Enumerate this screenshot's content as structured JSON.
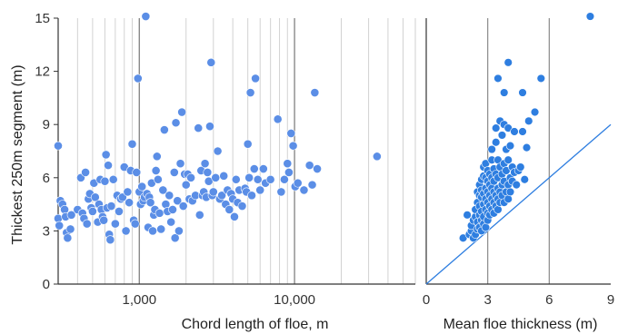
{
  "chart_data": [
    {
      "type": "scatter",
      "xscale": "log",
      "xlim": [
        300,
        60000
      ],
      "ylim": [
        0,
        15
      ],
      "xlabel": "Chord length of floe, m",
      "ylabel": "Thickest 250m segment (m)",
      "xticks": [
        1000,
        10000
      ],
      "xtick_labels": [
        "1,000",
        "10,000"
      ],
      "yticks": [
        0,
        3,
        6,
        9,
        12,
        15
      ],
      "ytick_labels": [
        "0",
        "3",
        "6",
        "9",
        "12",
        "15"
      ],
      "grid": "vertical log gridlines",
      "marker_color": "#5b8ee6",
      "points": [
        [
          300,
          7.8
        ],
        [
          300,
          3.7
        ],
        [
          305,
          3.3
        ],
        [
          310,
          4.7
        ],
        [
          320,
          4.5
        ],
        [
          330,
          4.2
        ],
        [
          335,
          3.8
        ],
        [
          340,
          2.9
        ],
        [
          345,
          2.6
        ],
        [
          360,
          3.1
        ],
        [
          365,
          3.9
        ],
        [
          400,
          4.2
        ],
        [
          420,
          6.0
        ],
        [
          430,
          4.0
        ],
        [
          440,
          3.7
        ],
        [
          450,
          6.3
        ],
        [
          460,
          3.4
        ],
        [
          470,
          4.8
        ],
        [
          480,
          5.1
        ],
        [
          490,
          4.3
        ],
        [
          500,
          4.1
        ],
        [
          510,
          5.7
        ],
        [
          520,
          4.9
        ],
        [
          540,
          3.5
        ],
        [
          550,
          4.5
        ],
        [
          560,
          5.9
        ],
        [
          570,
          4.2
        ],
        [
          580,
          3.8
        ],
        [
          590,
          3.6
        ],
        [
          600,
          5.8
        ],
        [
          610,
          7.3
        ],
        [
          620,
          4.3
        ],
        [
          630,
          6.7
        ],
        [
          640,
          2.8
        ],
        [
          650,
          2.5
        ],
        [
          660,
          4.4
        ],
        [
          680,
          5.9
        ],
        [
          700,
          3.4
        ],
        [
          720,
          5.0
        ],
        [
          740,
          4.1
        ],
        [
          760,
          4.8
        ],
        [
          780,
          4.9
        ],
        [
          800,
          6.6
        ],
        [
          820,
          3.0
        ],
        [
          840,
          5.2
        ],
        [
          860,
          4.6
        ],
        [
          880,
          6.4
        ],
        [
          900,
          7.9
        ],
        [
          920,
          3.6
        ],
        [
          940,
          3.4
        ],
        [
          960,
          6.3
        ],
        [
          980,
          11.6
        ],
        [
          1000,
          5.2
        ],
        [
          1020,
          4.5
        ],
        [
          1040,
          5.5
        ],
        [
          1060,
          4.7
        ],
        [
          1080,
          4.9
        ],
        [
          1100,
          15.1
        ],
        [
          1120,
          5.1
        ],
        [
          1140,
          3.2
        ],
        [
          1160,
          4.9
        ],
        [
          1180,
          4.6
        ],
        [
          1200,
          5.7
        ],
        [
          1220,
          3.0
        ],
        [
          1240,
          3.9
        ],
        [
          1260,
          4.2
        ],
        [
          1280,
          6.4
        ],
        [
          1300,
          7.2
        ],
        [
          1320,
          5.9
        ],
        [
          1350,
          4.0
        ],
        [
          1380,
          3.1
        ],
        [
          1420,
          5.3
        ],
        [
          1450,
          8.7
        ],
        [
          1480,
          4.5
        ],
        [
          1520,
          4.1
        ],
        [
          1560,
          5.0
        ],
        [
          1600,
          3.5
        ],
        [
          1640,
          4.2
        ],
        [
          1680,
          6.3
        ],
        [
          1700,
          2.6
        ],
        [
          1720,
          9.1
        ],
        [
          1760,
          4.7
        ],
        [
          1800,
          3.0
        ],
        [
          1840,
          6.8
        ],
        [
          1880,
          9.7
        ],
        [
          1920,
          4.4
        ],
        [
          1960,
          6.2
        ],
        [
          2000,
          5.6
        ],
        [
          2050,
          6.2
        ],
        [
          2100,
          4.8
        ],
        [
          2150,
          6.0
        ],
        [
          2200,
          4.7
        ],
        [
          2300,
          5.0
        ],
        [
          2400,
          8.8
        ],
        [
          2450,
          3.9
        ],
        [
          2500,
          6.4
        ],
        [
          2550,
          5.0
        ],
        [
          2600,
          5.2
        ],
        [
          2650,
          6.8
        ],
        [
          2700,
          4.9
        ],
        [
          2750,
          6.3
        ],
        [
          2800,
          5.8
        ],
        [
          2850,
          8.9
        ],
        [
          2900,
          12.5
        ],
        [
          2950,
          5.0
        ],
        [
          3000,
          5.2
        ],
        [
          3100,
          6.0
        ],
        [
          3200,
          7.5
        ],
        [
          3300,
          4.8
        ],
        [
          3400,
          5.0
        ],
        [
          3500,
          6.1
        ],
        [
          3600,
          4.5
        ],
        [
          3700,
          5.3
        ],
        [
          3800,
          4.2
        ],
        [
          3900,
          5.1
        ],
        [
          4000,
          4.8
        ],
        [
          4100,
          3.8
        ],
        [
          4200,
          5.9
        ],
        [
          4300,
          4.6
        ],
        [
          4400,
          5.3
        ],
        [
          4600,
          4.4
        ],
        [
          4800,
          5.4
        ],
        [
          4900,
          5.2
        ],
        [
          5000,
          7.9
        ],
        [
          5100,
          6.0
        ],
        [
          5200,
          10.8
        ],
        [
          5300,
          5.0
        ],
        [
          5500,
          6.5
        ],
        [
          5600,
          11.6
        ],
        [
          5800,
          5.9
        ],
        [
          6000,
          5.3
        ],
        [
          6300,
          6.5
        ],
        [
          6500,
          5.7
        ],
        [
          7000,
          5.9
        ],
        [
          7800,
          9.3
        ],
        [
          8200,
          5.2
        ],
        [
          8600,
          5.9
        ],
        [
          9000,
          6.8
        ],
        [
          9200,
          6.3
        ],
        [
          9500,
          8.5
        ],
        [
          9800,
          7.8
        ],
        [
          10100,
          5.5
        ],
        [
          10500,
          5.7
        ],
        [
          11500,
          5.3
        ],
        [
          12500,
          6.7
        ],
        [
          13000,
          5.6
        ],
        [
          13500,
          10.8
        ],
        [
          14000,
          6.5
        ],
        [
          34000,
          7.2
        ]
      ]
    },
    {
      "type": "scatter",
      "xlim": [
        0,
        9
      ],
      "ylim": [
        0,
        15
      ],
      "xlabel": "Mean floe thickness (m)",
      "xticks": [
        0,
        3,
        6,
        9
      ],
      "xtick_labels": [
        "0",
        "3",
        "6",
        "9"
      ],
      "grid": "vertical gridline at 3 and 6",
      "reference_line": "y = x",
      "marker_color": "#2e7ee0",
      "points": [
        [
          1.8,
          2.6
        ],
        [
          2.0,
          3.9
        ],
        [
          2.1,
          2.8
        ],
        [
          2.2,
          3.0
        ],
        [
          2.2,
          3.3
        ],
        [
          2.3,
          2.6
        ],
        [
          2.3,
          3.6
        ],
        [
          2.4,
          2.8
        ],
        [
          2.4,
          3.8
        ],
        [
          2.4,
          4.2
        ],
        [
          2.5,
          3.1
        ],
        [
          2.5,
          3.5
        ],
        [
          2.5,
          4.6
        ],
        [
          2.5,
          5.2
        ],
        [
          2.6,
          3.2
        ],
        [
          2.6,
          3.9
        ],
        [
          2.6,
          4.4
        ],
        [
          2.6,
          5.0
        ],
        [
          2.6,
          5.6
        ],
        [
          2.7,
          3.0
        ],
        [
          2.7,
          3.6
        ],
        [
          2.7,
          4.1
        ],
        [
          2.7,
          4.9
        ],
        [
          2.7,
          5.3
        ],
        [
          2.7,
          5.9
        ],
        [
          2.8,
          3.4
        ],
        [
          2.8,
          3.8
        ],
        [
          2.8,
          4.5
        ],
        [
          2.8,
          5.1
        ],
        [
          2.8,
          6.1
        ],
        [
          2.8,
          6.6
        ],
        [
          2.9,
          3.2
        ],
        [
          2.9,
          4.2
        ],
        [
          2.9,
          4.8
        ],
        [
          2.9,
          5.4
        ],
        [
          2.9,
          6.0
        ],
        [
          2.9,
          6.8
        ],
        [
          3.0,
          3.6
        ],
        [
          3.0,
          4.0
        ],
        [
          3.0,
          4.6
        ],
        [
          3.0,
          5.2
        ],
        [
          3.0,
          5.8
        ],
        [
          3.0,
          6.4
        ],
        [
          3.1,
          3.9
        ],
        [
          3.1,
          4.4
        ],
        [
          3.1,
          5.0
        ],
        [
          3.1,
          5.6
        ],
        [
          3.1,
          6.2
        ],
        [
          3.2,
          4.2
        ],
        [
          3.2,
          4.8
        ],
        [
          3.2,
          5.4
        ],
        [
          3.2,
          6.0
        ],
        [
          3.2,
          7.0
        ],
        [
          3.2,
          7.6
        ],
        [
          3.3,
          4.0
        ],
        [
          3.3,
          4.6
        ],
        [
          3.3,
          5.2
        ],
        [
          3.3,
          5.8
        ],
        [
          3.3,
          6.5
        ],
        [
          3.4,
          4.4
        ],
        [
          3.4,
          5.0
        ],
        [
          3.4,
          6.2
        ],
        [
          3.4,
          8.0
        ],
        [
          3.4,
          8.8
        ],
        [
          3.5,
          4.2
        ],
        [
          3.5,
          4.8
        ],
        [
          3.5,
          5.4
        ],
        [
          3.5,
          6.0
        ],
        [
          3.5,
          7.0
        ],
        [
          3.5,
          11.6
        ],
        [
          3.6,
          4.6
        ],
        [
          3.6,
          5.2
        ],
        [
          3.6,
          6.6
        ],
        [
          3.6,
          9.2
        ],
        [
          3.7,
          5.0
        ],
        [
          3.7,
          5.6
        ],
        [
          3.7,
          6.2
        ],
        [
          3.7,
          8.4
        ],
        [
          3.8,
          4.6
        ],
        [
          3.8,
          5.8
        ],
        [
          3.8,
          6.8
        ],
        [
          3.8,
          9.0
        ],
        [
          3.8,
          10.8
        ],
        [
          3.9,
          5.2
        ],
        [
          3.9,
          6.4
        ],
        [
          3.9,
          7.6
        ],
        [
          4.0,
          4.8
        ],
        [
          4.0,
          5.6
        ],
        [
          4.0,
          7.0
        ],
        [
          4.0,
          8.8
        ],
        [
          4.0,
          12.5
        ],
        [
          4.1,
          5.2
        ],
        [
          4.1,
          6.0
        ],
        [
          4.1,
          7.8
        ],
        [
          4.2,
          5.8
        ],
        [
          4.2,
          6.6
        ],
        [
          4.3,
          6.3
        ],
        [
          4.3,
          8.6
        ],
        [
          4.4,
          5.6
        ],
        [
          4.5,
          6.4
        ],
        [
          4.6,
          6.6
        ],
        [
          4.7,
          8.6
        ],
        [
          4.7,
          10.8
        ],
        [
          4.8,
          5.9
        ],
        [
          4.9,
          7.7
        ],
        [
          5.0,
          9.2
        ],
        [
          5.3,
          9.7
        ],
        [
          5.6,
          11.6
        ],
        [
          8.0,
          15.1
        ]
      ]
    }
  ]
}
